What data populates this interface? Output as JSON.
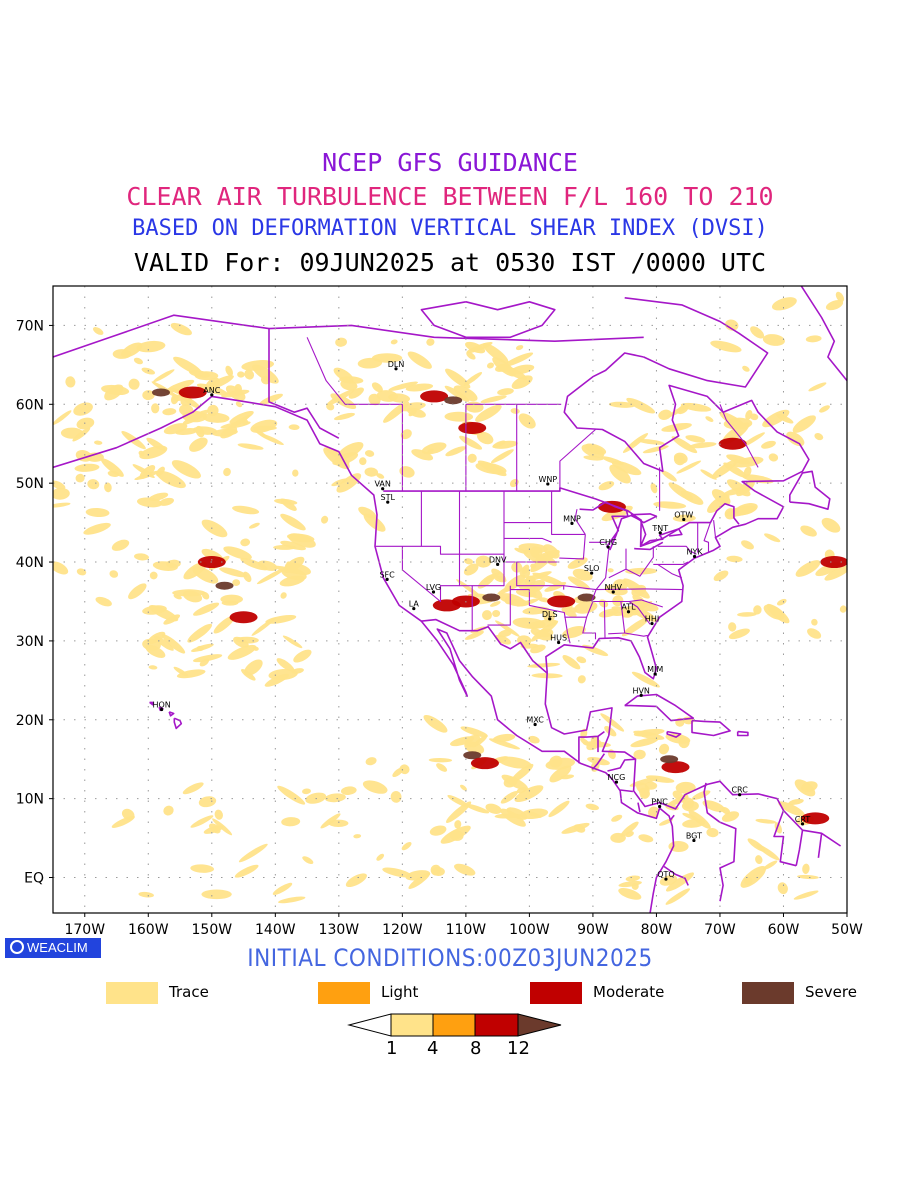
{
  "titles": {
    "line1": "NCEP GFS GUIDANCE",
    "line2": "CLEAR AIR TURBULENCE BETWEEN F/L 160 TO 210",
    "line3": "BASED ON DEFORMATION VERTICAL SHEAR INDEX (DVSI)",
    "line4": "VALID For: 09JUN2025 at 0530 IST /0000 UTC"
  },
  "colors": {
    "line1": "#8a17d6",
    "line2": "#e0267d",
    "line3": "#2a37e6",
    "line4": "#000000",
    "init": "#4466e0",
    "badge": "#2244dd",
    "coastline": "#a517c8",
    "grid": "#9a9a9a"
  },
  "map": {
    "lon_ticks": [
      "170W",
      "160W",
      "150W",
      "140W",
      "130W",
      "120W",
      "110W",
      "100W",
      "90W",
      "80W",
      "70W",
      "60W",
      "50W"
    ],
    "lat_ticks": [
      "70N",
      "60N",
      "50N",
      "40N",
      "30N",
      "20N",
      "10N",
      "EQ"
    ],
    "lon_range": [
      -175,
      -50
    ],
    "lat_range": [
      -4.5,
      75
    ],
    "cities": [
      {
        "name": "DLN",
        "lon": -121,
        "lat": 64.5
      },
      {
        "name": "ANC",
        "lon": -150,
        "lat": 61.2
      },
      {
        "name": "VAN",
        "lon": -123.1,
        "lat": 49.3
      },
      {
        "name": "STL",
        "lon": -122.3,
        "lat": 47.6
      },
      {
        "name": "WNP",
        "lon": -97.1,
        "lat": 49.9
      },
      {
        "name": "MNP",
        "lon": -93.3,
        "lat": 44.9
      },
      {
        "name": "TNT",
        "lon": -79.4,
        "lat": 43.7
      },
      {
        "name": "OTW",
        "lon": -75.7,
        "lat": 45.4
      },
      {
        "name": "CHG",
        "lon": -87.6,
        "lat": 41.9
      },
      {
        "name": "NYK",
        "lon": -74,
        "lat": 40.7
      },
      {
        "name": "DNV",
        "lon": -105,
        "lat": 39.7
      },
      {
        "name": "SFC",
        "lon": -122.4,
        "lat": 37.8
      },
      {
        "name": "SLO",
        "lon": -90.2,
        "lat": 38.6
      },
      {
        "name": "LVG",
        "lon": -115.1,
        "lat": 36.2
      },
      {
        "name": "NHV",
        "lon": -86.8,
        "lat": 36.2
      },
      {
        "name": "LA",
        "lon": -118.2,
        "lat": 34.1
      },
      {
        "name": "ATL",
        "lon": -84.4,
        "lat": 33.7
      },
      {
        "name": "DLS",
        "lon": -96.8,
        "lat": 32.8
      },
      {
        "name": "HHI",
        "lon": -80.7,
        "lat": 32.2
      },
      {
        "name": "HUS",
        "lon": -95.4,
        "lat": 29.8
      },
      {
        "name": "MIM",
        "lon": -80.2,
        "lat": 25.8
      },
      {
        "name": "HVN",
        "lon": -82.4,
        "lat": 23.1
      },
      {
        "name": "HON",
        "lon": -157.9,
        "lat": 21.3
      },
      {
        "name": "MXC",
        "lon": -99.1,
        "lat": 19.4
      },
      {
        "name": "NCG",
        "lon": -86.3,
        "lat": 12.1
      },
      {
        "name": "CRC",
        "lon": -66.9,
        "lat": 10.5
      },
      {
        "name": "PNC",
        "lon": -79.5,
        "lat": 9
      },
      {
        "name": "CRT",
        "lon": -57,
        "lat": 6.8
      },
      {
        "name": "BGT",
        "lon": -74.1,
        "lat": 4.7
      },
      {
        "name": "QTO",
        "lon": -78.5,
        "lat": -0.2
      }
    ],
    "turbulence_areas": [
      {
        "lon": -153,
        "lat": 61.5,
        "level": 2
      },
      {
        "lon": -158,
        "lat": 61.5,
        "level": 3
      },
      {
        "lon": -115,
        "lat": 61,
        "level": 2
      },
      {
        "lon": -112,
        "lat": 60.5,
        "level": 3
      },
      {
        "lon": -109,
        "lat": 57,
        "level": 2
      },
      {
        "lon": -110,
        "lat": 35,
        "level": 2
      },
      {
        "lon": -106,
        "lat": 35.5,
        "level": 3
      },
      {
        "lon": -113,
        "lat": 34.5,
        "level": 2
      },
      {
        "lon": -150,
        "lat": 40,
        "level": 2
      },
      {
        "lon": -148,
        "lat": 37,
        "level": 3
      },
      {
        "lon": -145,
        "lat": 33,
        "level": 2
      },
      {
        "lon": -109,
        "lat": 15.5,
        "level": 3
      },
      {
        "lon": -107,
        "lat": 14.5,
        "level": 2
      },
      {
        "lon": -77,
        "lat": 14,
        "level": 2
      },
      {
        "lon": -78,
        "lat": 15,
        "level": 3
      },
      {
        "lon": -95,
        "lat": 35,
        "level": 2
      },
      {
        "lon": -91,
        "lat": 35.5,
        "level": 3
      },
      {
        "lon": -87,
        "lat": 47,
        "level": 2
      },
      {
        "lon": -68,
        "lat": 55,
        "level": 2
      },
      {
        "lon": -55,
        "lat": 7.5,
        "level": 2
      },
      {
        "lon": -52,
        "lat": 40,
        "level": 2
      }
    ]
  },
  "initial_conditions": "INITIAL CONDITIONS:00Z03JUN2025",
  "badge_text": "WEACLIM",
  "legend": [
    {
      "label": "Trace",
      "color": "#ffe38a"
    },
    {
      "label": "Light",
      "color": "#ffa010"
    },
    {
      "label": "Moderate",
      "color": "#c00000"
    },
    {
      "label": "Severe",
      "color": "#6b3a2c"
    }
  ],
  "colorbar": {
    "labels": [
      "1",
      "4",
      "8",
      "12"
    ],
    "colors": [
      "#ffffff",
      "#ffe38a",
      "#ffa010",
      "#c00000",
      "#6b3a2c"
    ]
  }
}
